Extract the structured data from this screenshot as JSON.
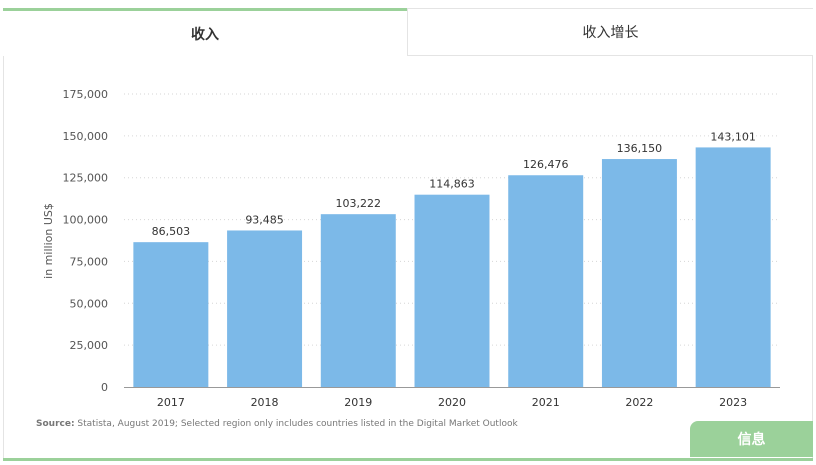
{
  "tabs": [
    {
      "label": "收入",
      "active": true
    },
    {
      "label": "收入增长",
      "active": false
    }
  ],
  "info_button": {
    "label": "信息"
  },
  "source": {
    "label": "Source:",
    "text": " Statista, August 2019; Selected region only includes countries listed in the Digital Market Outlook"
  },
  "colors": {
    "bar": "#7cb9e8",
    "accent": "#9bd19a"
  },
  "chart_data": {
    "type": "bar",
    "categories": [
      "2017",
      "2018",
      "2019",
      "2020",
      "2021",
      "2022",
      "2023"
    ],
    "values": [
      86503,
      93485,
      103222,
      114863,
      126476,
      136150,
      143101
    ],
    "value_labels": [
      "86,503",
      "93,485",
      "103,222",
      "114,863",
      "126,476",
      "136,150",
      "143,101"
    ],
    "title": "",
    "xlabel": "",
    "ylabel": "in million US$",
    "ylim": [
      0,
      175000
    ],
    "yticks": [
      0,
      25000,
      50000,
      75000,
      100000,
      125000,
      150000,
      175000
    ],
    "ytick_labels": [
      "0",
      "25,000",
      "50,000",
      "75,000",
      "100,000",
      "125,000",
      "150,000",
      "175,000"
    ],
    "grid": true,
    "legend": false
  }
}
